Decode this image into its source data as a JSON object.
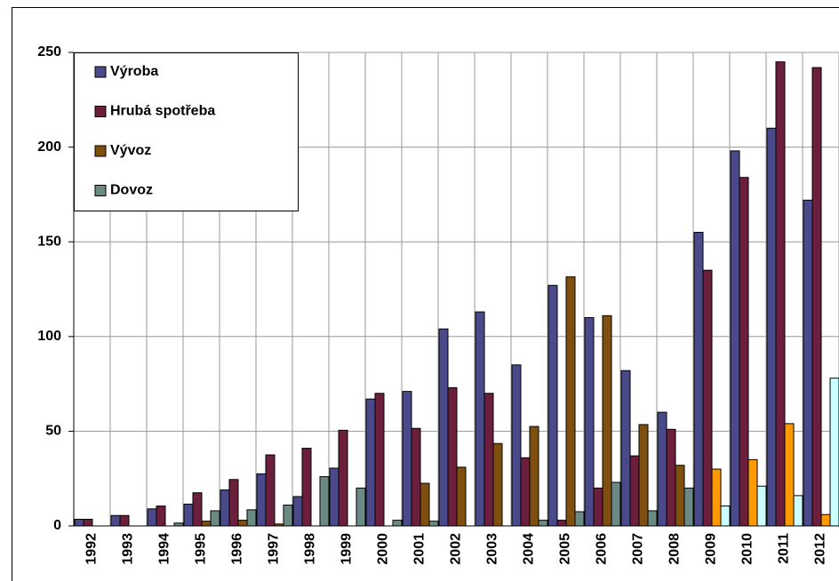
{
  "chart_data": {
    "type": "bar",
    "categories": [
      "1992",
      "1993",
      "1994",
      "1995",
      "1996",
      "1997",
      "1998",
      "1999",
      "2000",
      "2001",
      "2002",
      "2003",
      "2004",
      "2005",
      "2006",
      "2007",
      "2008",
      "2009",
      "2010",
      "2011",
      "2012"
    ],
    "series": [
      {
        "name": "Výroba",
        "color": "#4a4a8a",
        "values": [
          3.5,
          5.5,
          9,
          11.5,
          19,
          27.5,
          15.5,
          30.5,
          67,
          71,
          104,
          113,
          85,
          127,
          110,
          82,
          60,
          155,
          198,
          210,
          172
        ]
      },
      {
        "name": "Hrubá spotřeba",
        "color": "#6b1f3c",
        "values": [
          3.5,
          5.5,
          10.5,
          17.5,
          24.5,
          37.5,
          41,
          50.5,
          70,
          51.5,
          73,
          70,
          36,
          3,
          20,
          37,
          51,
          135,
          184,
          245,
          242
        ]
      },
      {
        "name": "Vývoz",
        "color": "#7f4f10",
        "colors": [
          "#7f4f10",
          "#7f4f10",
          "#7f4f10",
          "#7f4f10",
          "#7f4f10",
          "#7f4f10",
          "#7f4f10",
          "#7f4f10",
          "#7f4f10",
          "#7f4f10",
          "#7f4f10",
          "#7f4f10",
          "#7f4f10",
          "#7f4f10",
          "#7f4f10",
          "#7f4f10",
          "#7f4f10",
          "#ff9900",
          "#ff9900",
          "#ff9900",
          "#ff9900"
        ],
        "values": [
          0,
          0,
          0,
          2.5,
          3,
          1,
          0,
          0,
          0,
          22.5,
          31,
          43.5,
          52.5,
          131.5,
          111,
          53.5,
          32,
          30,
          35,
          54,
          6
        ]
      },
      {
        "name": "Dovoz",
        "color": "#6b8a84",
        "colors": [
          "#6b8a84",
          "#6b8a84",
          "#6b8a84",
          "#6b8a84",
          "#6b8a84",
          "#6b8a84",
          "#6b8a84",
          "#6b8a84",
          "#6b8a84",
          "#6b8a84",
          "#6b8a84",
          "#6b8a84",
          "#6b8a84",
          "#6b8a84",
          "#6b8a84",
          "#6b8a84",
          "#6b8a84",
          "#ccffff",
          "#ccffff",
          "#ccffff",
          "#ccffff"
        ],
        "values": [
          0,
          0,
          1.5,
          8,
          8.5,
          11,
          26,
          20,
          3,
          2.5,
          0,
          0,
          3,
          7.5,
          23,
          8,
          20,
          10.5,
          21,
          16,
          78
        ]
      }
    ],
    "ylim": [
      0,
      250
    ],
    "yticks": [
      0,
      50,
      100,
      150,
      200,
      250
    ],
    "grid": true,
    "legend": "top-left"
  }
}
